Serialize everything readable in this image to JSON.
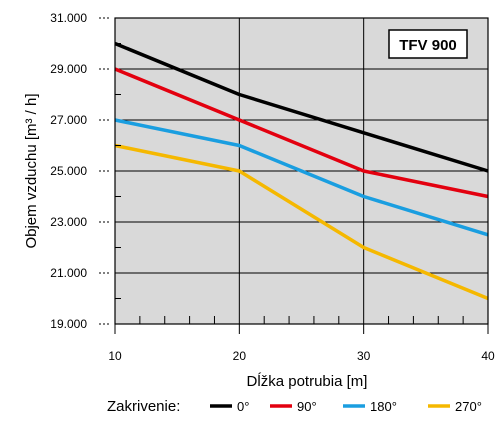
{
  "chart_data": {
    "type": "line",
    "badge": "TFV 900",
    "xlabel": "Dĺžka potrubia [m]",
    "ylabel": "Objem vzduchu [m³ / h]",
    "xlim": [
      10,
      40
    ],
    "ylim": [
      19000,
      31000
    ],
    "x_ticks": [
      10,
      20,
      30,
      40
    ],
    "x_tick_labels": [
      "10",
      "20",
      "30",
      "40"
    ],
    "y_ticks": [
      19000,
      21000,
      23000,
      25000,
      27000,
      29000,
      31000
    ],
    "y_tick_labels": [
      "19.000",
      "21.000",
      "23.000",
      "25.000",
      "27.000",
      "29.000",
      "31.000"
    ],
    "grid": true,
    "legend_title": "Zakrivenie:",
    "legend_position": "bottom",
    "x": [
      10,
      20,
      30,
      40
    ],
    "series": [
      {
        "name": "0°",
        "color": "#000000",
        "values": [
          30000,
          28000,
          26500,
          25000
        ]
      },
      {
        "name": "90°",
        "color": "#e3000f",
        "values": [
          29000,
          27000,
          25000,
          24000
        ]
      },
      {
        "name": "180°",
        "color": "#1a9ee0",
        "values": [
          27000,
          26000,
          24000,
          22500
        ]
      },
      {
        "name": "270°",
        "color": "#f5b800",
        "values": [
          26000,
          25000,
          22000,
          20000
        ]
      }
    ],
    "colors": {
      "plot_background": "#d9d9d9",
      "grid": "#000000"
    }
  }
}
